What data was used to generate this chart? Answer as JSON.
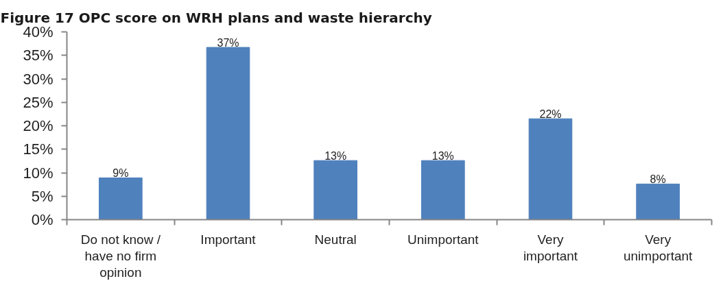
{
  "chart_data": {
    "type": "bar",
    "title": "Figure 17 OPC score on WRH plans and waste hierarchy",
    "categories": [
      "Do not know / have no firm opinion",
      "Important",
      "Neutral",
      "Unimportant",
      "Very important",
      "Very unimportant"
    ],
    "values": [
      8.9,
      36.7,
      12.6,
      12.6,
      21.5,
      7.6
    ],
    "value_labels": [
      "9%",
      "37%",
      "13%",
      "13%",
      "22%",
      "8%"
    ],
    "color": "#4f81bd",
    "ylim": [
      0,
      40
    ],
    "yticks": [
      {
        "value": 0,
        "label": "0%"
      },
      {
        "value": 5,
        "label": "5%"
      },
      {
        "value": 10,
        "label": "10%"
      },
      {
        "value": 15,
        "label": "15%"
      },
      {
        "value": 20,
        "label": "20%"
      },
      {
        "value": 25,
        "label": "25%"
      },
      {
        "value": 30,
        "label": "30%"
      },
      {
        "value": 35,
        "label": "35%"
      },
      {
        "value": 40,
        "label": "40%"
      }
    ]
  }
}
